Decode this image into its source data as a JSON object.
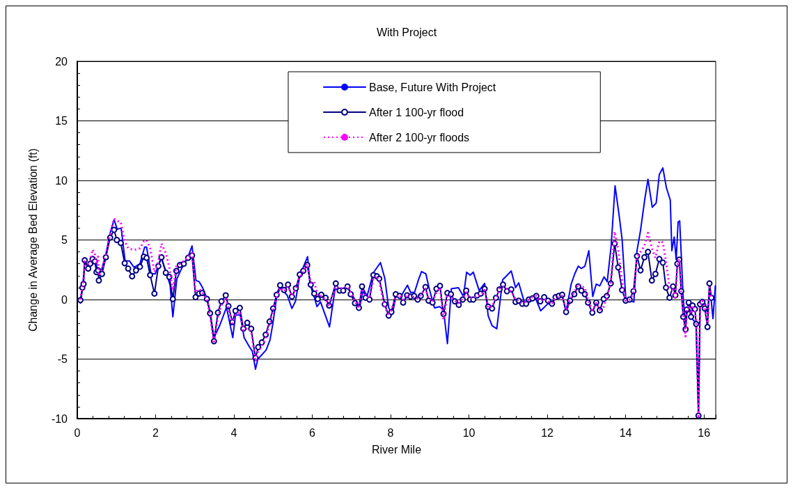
{
  "chart_data": {
    "type": "line",
    "title": "With Project",
    "xlabel": "River Mile",
    "ylabel": "Change in Average Bed Elevation (ft)",
    "xlim": [
      0,
      16.3
    ],
    "xticks": [
      0,
      2,
      4,
      6,
      8,
      10,
      12,
      14,
      16
    ],
    "ylim": [
      -10,
      20
    ],
    "yticks": [
      -10,
      -5,
      0,
      5,
      10,
      15,
      20
    ],
    "grid": "y",
    "legend": "top",
    "series": [
      {
        "name": "Base, Future With Project",
        "color": "#0000ff",
        "marker": "none",
        "line_style": "solid",
        "x": [
          0.08,
          0.13,
          0.19,
          0.28,
          0.39,
          0.45,
          0.55,
          0.63,
          0.73,
          0.84,
          0.94,
          1.02,
          1.12,
          1.22,
          1.33,
          1.45,
          1.6,
          1.72,
          1.77,
          1.88,
          1.99,
          2.14,
          2.26,
          2.37,
          2.44,
          2.54,
          2.62,
          2.71,
          2.83,
          2.93,
          3.03,
          3.11,
          3.2,
          3.31,
          3.39,
          3.49,
          3.64,
          3.81,
          3.97,
          4.04,
          4.16,
          4.26,
          4.39,
          4.47,
          4.55,
          4.61,
          4.82,
          4.92,
          4.99,
          5.09,
          5.18,
          5.36,
          5.48,
          5.57,
          5.68,
          5.88,
          5.94,
          6.05,
          6.12,
          6.21,
          6.44,
          6.58,
          6.76,
          6.9,
          7.0,
          7.21,
          7.3,
          7.4,
          7.56,
          7.74,
          7.85,
          7.95,
          8.05,
          8.14,
          8.25,
          8.43,
          8.51,
          8.61,
          8.72,
          8.79,
          8.9,
          8.99,
          9.12,
          9.25,
          9.35,
          9.45,
          9.55,
          9.73,
          9.86,
          9.94,
          10.03,
          10.11,
          10.26,
          10.4,
          10.49,
          10.59,
          10.71,
          10.86,
          11.08,
          11.19,
          11.27,
          11.42,
          11.55,
          11.7,
          11.83,
          12.0,
          12.12,
          12.23,
          12.38,
          12.48,
          12.61,
          12.7,
          12.79,
          12.87,
          12.96,
          13.06,
          13.16,
          13.25,
          13.34,
          13.45,
          13.53,
          13.63,
          13.73,
          13.83,
          13.91,
          14.01,
          14.11,
          14.21,
          14.29,
          14.38,
          14.49,
          14.57,
          14.68,
          14.78,
          14.86,
          14.95,
          15.04,
          15.14,
          15.18,
          15.24,
          15.29,
          15.34,
          15.38,
          15.47,
          15.53,
          15.58,
          15.67,
          15.72,
          15.8,
          15.86,
          15.9,
          15.99,
          16.04,
          16.09,
          16.15,
          16.23,
          16.29
        ],
        "values": [
          -0.3,
          0.8,
          3.1,
          2.8,
          3.6,
          3.5,
          2.0,
          2.6,
          3.8,
          5.6,
          6.7,
          5.9,
          6.0,
          3.25,
          3.25,
          2.7,
          3.0,
          4.4,
          4.4,
          2.2,
          2.15,
          3.5,
          2.4,
          1.2,
          -1.45,
          1.7,
          2.3,
          2.9,
          3.6,
          4.5,
          1.6,
          1.5,
          1.0,
          0.1,
          -1.0,
          -3.2,
          -2.15,
          -0.65,
          -3.2,
          -1.3,
          -1.3,
          -3.2,
          -3.95,
          -4.35,
          -5.85,
          -5.0,
          -4.25,
          -3.4,
          -2.1,
          0.2,
          1.0,
          0.35,
          -0.75,
          -0.15,
          2.0,
          3.6,
          1.3,
          0.2,
          -0.6,
          -0.2,
          -2.3,
          0.85,
          0.9,
          1.1,
          0.5,
          -0.7,
          0.9,
          0.3,
          2.25,
          3.1,
          1.8,
          -0.7,
          -1.15,
          0.35,
          0.2,
          1.2,
          0.6,
          0.6,
          1.75,
          2.35,
          2.15,
          0.85,
          -0.7,
          -0.6,
          -0.85,
          -3.7,
          0.9,
          1.0,
          0.25,
          2.3,
          2.05,
          2.3,
          0.75,
          1.35,
          -1.35,
          -2.2,
          -2.45,
          1.65,
          2.4,
          1.0,
          1.4,
          -0.3,
          -0.2,
          0.1,
          -0.95,
          -0.4,
          -0.2,
          0.1,
          0.3,
          -1.0,
          1.3,
          2.15,
          2.8,
          2.6,
          2.8,
          4.1,
          0.25,
          1.3,
          1.15,
          1.9,
          1.5,
          4.5,
          9.55,
          7.15,
          5.05,
          -0.2,
          -0.1,
          -0.2,
          4.1,
          5.8,
          8.45,
          10.1,
          7.75,
          8.1,
          10.5,
          11.05,
          9.4,
          8.35,
          4.1,
          5.25,
          3.35,
          6.5,
          6.6,
          0.15,
          -2.2,
          -0.75,
          -1.25,
          -1.7,
          -2.0,
          -9.6,
          -0.4,
          -0.2,
          -0.4,
          -1.15,
          1.1,
          -1.6,
          1.15
        ]
      },
      {
        "name": "After 1 100-yr flood",
        "color": "#000080",
        "marker": "circle",
        "line_style": "solid",
        "x": [
          0.08,
          0.13,
          0.16,
          0.19,
          0.28,
          0.33,
          0.39,
          0.45,
          0.49,
          0.53,
          0.55,
          0.63,
          0.73,
          0.84,
          0.94,
          1.01,
          1.11,
          1.21,
          1.3,
          1.4,
          1.5,
          1.6,
          1.7,
          1.77,
          1.86,
          1.97,
          2.07,
          2.15,
          2.26,
          2.35,
          2.44,
          2.53,
          2.62,
          2.72,
          2.83,
          2.93,
          3.02,
          3.11,
          3.19,
          3.31,
          3.39,
          3.49,
          3.59,
          3.68,
          3.79,
          3.86,
          3.96,
          4.04,
          4.15,
          4.24,
          4.34,
          4.44,
          4.55,
          4.62,
          4.71,
          4.81,
          4.91,
          5.0,
          5.09,
          5.18,
          5.28,
          5.38,
          5.48,
          5.58,
          5.68,
          5.77,
          5.87,
          5.96,
          6.05,
          6.14,
          6.23,
          6.34,
          6.43,
          6.6,
          6.7,
          6.79,
          6.9,
          6.98,
          7.09,
          7.19,
          7.27,
          7.36,
          7.46,
          7.56,
          7.65,
          7.71,
          7.85,
          7.95,
          8.02,
          8.13,
          8.23,
          8.32,
          8.42,
          8.51,
          8.6,
          8.69,
          8.77,
          8.89,
          8.97,
          9.07,
          9.17,
          9.26,
          9.35,
          9.45,
          9.54,
          9.64,
          9.74,
          9.84,
          9.93,
          10.03,
          10.11,
          10.21,
          10.3,
          10.4,
          10.49,
          10.59,
          10.69,
          10.78,
          10.87,
          10.97,
          11.08,
          11.19,
          11.27,
          11.36,
          11.46,
          11.53,
          11.62,
          11.72,
          11.82,
          11.92,
          12.02,
          12.12,
          12.21,
          12.29,
          12.38,
          12.48,
          12.58,
          12.69,
          12.79,
          12.87,
          12.96,
          13.04,
          13.15,
          13.25,
          13.34,
          13.44,
          13.52,
          13.62,
          13.72,
          13.81,
          13.91,
          14.0,
          14.1,
          14.2,
          14.29,
          14.38,
          14.48,
          14.57,
          14.67,
          14.76,
          14.86,
          14.95,
          15.03,
          15.12,
          15.21,
          15.27,
          15.32,
          15.37,
          15.42,
          15.47,
          15.53,
          15.56,
          15.61,
          15.67,
          15.71,
          15.77,
          15.8,
          15.86,
          15.9,
          15.96,
          16.02,
          16.09,
          16.14,
          16.19
        ],
        "values": [
          -0.05,
          1.0,
          1.3,
          3.3,
          2.6,
          3.0,
          3.4,
          3.2,
          2.3,
          2.45,
          1.6,
          2.15,
          3.55,
          5.2,
          5.85,
          5.0,
          4.75,
          3.05,
          2.6,
          1.95,
          2.45,
          2.75,
          3.6,
          3.5,
          2.05,
          0.5,
          2.8,
          3.55,
          2.25,
          1.9,
          0.05,
          2.4,
          2.9,
          3.0,
          3.5,
          3.7,
          0.2,
          0.5,
          0.55,
          0.05,
          -1.15,
          -3.5,
          -1.1,
          -0.15,
          0.35,
          -0.55,
          -1.9,
          -0.95,
          -0.7,
          -2.45,
          -1.95,
          -2.45,
          -4.9,
          -4.0,
          -3.6,
          -2.95,
          -1.85,
          -0.75,
          0.4,
          1.2,
          0.8,
          1.25,
          0.25,
          0.95,
          2.1,
          2.4,
          2.9,
          1.25,
          0.5,
          0.05,
          0.4,
          0.15,
          -0.5,
          1.35,
          0.75,
          0.75,
          1.1,
          0.45,
          -0.3,
          -0.7,
          1.1,
          0.15,
          0.0,
          2.05,
          1.95,
          1.75,
          -0.4,
          -1.35,
          -1.05,
          0.45,
          0.3,
          -0.25,
          0.35,
          0.25,
          0.3,
          0.0,
          0.3,
          1.05,
          -0.1,
          -0.25,
          0.9,
          1.15,
          -1.2,
          0.55,
          0.45,
          -0.15,
          -0.45,
          0.0,
          0.75,
          0.0,
          0.0,
          0.35,
          0.5,
          0.9,
          -0.6,
          -0.75,
          0.15,
          0.85,
          1.25,
          0.7,
          0.85,
          -0.2,
          -0.1,
          -0.35,
          -0.35,
          0.0,
          0.1,
          0.3,
          -0.15,
          0.2,
          -0.1,
          -0.35,
          0.2,
          0.3,
          0.4,
          -1.05,
          -0.1,
          0.45,
          1.1,
          0.75,
          0.45,
          -0.25,
          -1.1,
          -0.25,
          -0.9,
          0.05,
          0.3,
          1.35,
          4.7,
          2.7,
          0.8,
          -0.1,
          0.0,
          0.7,
          3.65,
          2.45,
          3.55,
          4.0,
          1.6,
          2.15,
          3.4,
          3.1,
          1.0,
          0.15,
          1.1,
          0.35,
          3.0,
          3.35,
          0.7,
          -1.45,
          -2.5,
          -0.85,
          -0.25,
          -1.45,
          -0.5,
          -0.8,
          -2.05,
          -9.75,
          -0.4,
          -0.2,
          -0.75,
          -2.3,
          1.35,
          0.15
        ]
      },
      {
        "name": "After 2 100-yr floods",
        "color": "#ff00ff",
        "marker": "none",
        "line_style": "dotted",
        "x": [
          0.08,
          0.13,
          0.16,
          0.19,
          0.28,
          0.33,
          0.39,
          0.45,
          0.49,
          0.53,
          0.55,
          0.63,
          0.73,
          0.84,
          0.94,
          1.01,
          1.11,
          1.21,
          1.3,
          1.4,
          1.5,
          1.6,
          1.7,
          1.77,
          1.86,
          1.97,
          2.07,
          2.15,
          2.26,
          2.35,
          2.44,
          2.53,
          2.62,
          2.72,
          2.83,
          2.93,
          3.02,
          3.11,
          3.19,
          3.31,
          3.39,
          3.49,
          3.59,
          3.68,
          3.79,
          3.86,
          3.96,
          4.04,
          4.15,
          4.24,
          4.34,
          4.44,
          4.55,
          4.62,
          4.71,
          4.81,
          4.91,
          5.0,
          5.09,
          5.18,
          5.28,
          5.38,
          5.48,
          5.58,
          5.68,
          5.77,
          5.87,
          5.96,
          6.05,
          6.14,
          6.23,
          6.34,
          6.43,
          6.6,
          6.7,
          6.79,
          6.9,
          6.98,
          7.09,
          7.19,
          7.27,
          7.36,
          7.46,
          7.56,
          7.65,
          7.71,
          7.85,
          7.95,
          8.02,
          8.13,
          8.23,
          8.32,
          8.42,
          8.51,
          8.6,
          8.69,
          8.77,
          8.89,
          8.97,
          9.07,
          9.17,
          9.26,
          9.35,
          9.45,
          9.54,
          9.64,
          9.74,
          9.84,
          9.93,
          10.03,
          10.11,
          10.21,
          10.3,
          10.4,
          10.49,
          10.59,
          10.69,
          10.78,
          10.87,
          10.97,
          11.08,
          11.19,
          11.27,
          11.36,
          11.46,
          11.53,
          11.62,
          11.72,
          11.82,
          11.92,
          12.02,
          12.12,
          12.21,
          12.29,
          12.38,
          12.48,
          12.58,
          12.69,
          12.79,
          12.87,
          12.96,
          13.04,
          13.15,
          13.25,
          13.34,
          13.44,
          13.52,
          13.62,
          13.72,
          13.81,
          13.91,
          14.0,
          14.1,
          14.2,
          14.29,
          14.38,
          14.48,
          14.57,
          14.67,
          14.76,
          14.86,
          14.95,
          15.03,
          15.12,
          15.21,
          15.27,
          15.32,
          15.37,
          15.42,
          15.47,
          15.53,
          15.56,
          15.61,
          15.67,
          15.71,
          15.77,
          15.8,
          15.86,
          15.9,
          15.96,
          16.02,
          16.09,
          16.14,
          16.19
        ],
        "values": [
          0.0,
          1.2,
          1.5,
          3.2,
          3.0,
          3.2,
          4.2,
          3.8,
          3.0,
          3.6,
          2.0,
          2.5,
          3.8,
          5.5,
          6.8,
          6.6,
          6.5,
          4.9,
          4.3,
          4.2,
          4.2,
          4.3,
          4.9,
          5.0,
          4.3,
          2.3,
          3.2,
          4.7,
          3.9,
          2.7,
          0.8,
          2.8,
          3.0,
          3.2,
          3.6,
          3.9,
          0.6,
          0.9,
          0.6,
          0.0,
          -1.4,
          -3.7,
          -1.5,
          -0.5,
          0.1,
          -0.8,
          -2.0,
          -1.3,
          -1.0,
          -2.6,
          -2.4,
          -2.7,
          -5.2,
          -4.3,
          -3.9,
          -3.3,
          -2.1,
          -0.9,
          0.2,
          1.0,
          0.7,
          1.1,
          0.3,
          0.9,
          1.9,
          2.3,
          3.0,
          1.4,
          1.5,
          0.3,
          0.3,
          0.0,
          -0.6,
          1.1,
          0.9,
          1.0,
          1.1,
          0.6,
          -0.2,
          -0.6,
          0.9,
          0.3,
          0.1,
          1.8,
          2.0,
          1.5,
          -0.7,
          -1.2,
          -0.9,
          0.2,
          0.4,
          0.0,
          0.4,
          0.3,
          0.2,
          0.1,
          0.4,
          0.9,
          0.1,
          -0.2,
          0.6,
          1.0,
          -1.7,
          0.4,
          0.3,
          -0.1,
          -0.3,
          0.1,
          0.6,
          0.1,
          0.1,
          0.3,
          0.4,
          0.8,
          -0.7,
          -0.6,
          0.2,
          0.9,
          1.1,
          0.9,
          0.7,
          0.0,
          -0.1,
          -0.3,
          -0.2,
          0.0,
          0.2,
          0.3,
          -0.1,
          0.1,
          -0.2,
          -0.3,
          0.1,
          0.3,
          0.3,
          -0.9,
          0.0,
          0.6,
          1.3,
          1.1,
          1.0,
          0.0,
          -0.9,
          -0.3,
          -0.85,
          -0.6,
          0.2,
          1.4,
          5.7,
          4.2,
          1.5,
          -0.1,
          0.0,
          0.5,
          3.5,
          4.0,
          4.5,
          5.6,
          4.3,
          3.5,
          4.9,
          4.8,
          3.2,
          1.0,
          0.8,
          0.0,
          2.8,
          3.4,
          0.5,
          -1.0,
          -3.1,
          -1.0,
          -0.5,
          -1.2,
          -0.5,
          -0.9,
          -2.0,
          -9.8,
          -0.5,
          -0.1,
          -0.6,
          -2.0,
          1.0,
          0.2
        ]
      }
    ]
  }
}
